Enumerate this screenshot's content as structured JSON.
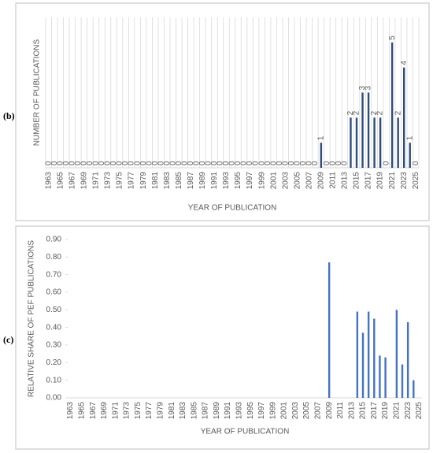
{
  "chart_data": [
    {
      "type": "bar",
      "label": "(b)",
      "y_label": "NUMBER OF PUBLICATIONS",
      "x_label": "YEAR OF PUBLICATION",
      "categories": [
        "1963",
        null,
        "1965",
        null,
        "1967",
        null,
        "1969",
        null,
        "1971",
        null,
        "1973",
        null,
        "1975",
        null,
        "1977",
        null,
        "1979",
        null,
        "1981",
        null,
        "1983",
        null,
        "1985",
        null,
        "1987",
        null,
        "1989",
        null,
        "1991",
        null,
        "1993",
        null,
        "1995",
        null,
        "1997",
        null,
        "1999",
        null,
        "2001",
        null,
        "2003",
        null,
        "2005",
        null,
        "2007",
        null,
        "2009",
        null,
        "2011",
        null,
        "2013",
        null,
        "2015",
        null,
        "2017",
        null,
        "2019",
        null,
        "2021",
        null,
        "2023",
        null,
        "2025"
      ],
      "values": [
        0,
        0,
        0,
        0,
        0,
        0,
        0,
        0,
        0,
        0,
        0,
        0,
        0,
        0,
        0,
        0,
        0,
        0,
        0,
        0,
        0,
        0,
        0,
        0,
        0,
        0,
        0,
        0,
        0,
        0,
        0,
        0,
        0,
        0,
        0,
        0,
        0,
        0,
        0,
        0,
        0,
        0,
        0,
        0,
        0,
        0,
        1,
        0,
        0,
        0,
        0,
        2,
        2,
        3,
        3,
        2,
        2,
        0,
        5,
        2,
        4,
        1,
        0
      ],
      "color": "#2f4b7c",
      "ylim": [
        0,
        6
      ],
      "grid": "x",
      "data_labels": true
    },
    {
      "type": "bar",
      "label": "(c)",
      "y_label": "RELATIVE SHARE OF PEF PUBLICATIONS",
      "x_label": "YEAR OF PUBLICATION",
      "categories": [
        "1963",
        null,
        "1965",
        null,
        "1967",
        null,
        "1969",
        null,
        "1971",
        null,
        "1973",
        null,
        "1975",
        null,
        "1977",
        null,
        "1979",
        null,
        "1981",
        null,
        "1983",
        null,
        "1985",
        null,
        "1987",
        null,
        "1989",
        null,
        "1991",
        null,
        "1993",
        null,
        "1995",
        null,
        "1997",
        null,
        "1999",
        null,
        "2001",
        null,
        "2003",
        null,
        "2005",
        null,
        "2007",
        null,
        "2009",
        null,
        "2011",
        null,
        "2013",
        null,
        "2015",
        null,
        "2017",
        null,
        "2019",
        null,
        "2021",
        null,
        "2023",
        null,
        "2025"
      ],
      "values": [
        0,
        0,
        0,
        0,
        0,
        0,
        0,
        0,
        0,
        0,
        0,
        0,
        0,
        0,
        0,
        0,
        0,
        0,
        0,
        0,
        0,
        0,
        0,
        0,
        0,
        0,
        0,
        0,
        0,
        0,
        0,
        0,
        0,
        0,
        0,
        0,
        0,
        0,
        0,
        0,
        0,
        0,
        0,
        0,
        0,
        0,
        0.77,
        0,
        0,
        0,
        0,
        0.49,
        0.37,
        0.49,
        0.45,
        0.24,
        0.23,
        0,
        0.5,
        0.19,
        0.43,
        0.1,
        0
      ],
      "color": "#4472c4",
      "ylim": [
        0,
        0.9
      ],
      "yticks": [
        {
          "value": 0,
          "label": "0.00"
        },
        {
          "value": 0.1,
          "label": "0.10"
        },
        {
          "value": 0.2,
          "label": "0.20"
        },
        {
          "value": 0.3,
          "label": "0.30"
        },
        {
          "value": 0.4,
          "label": "0.40"
        },
        {
          "value": 0.5,
          "label": "0.50"
        },
        {
          "value": 0.6,
          "label": "0.60"
        },
        {
          "value": 0.7,
          "label": "0.70"
        },
        {
          "value": 0.8,
          "label": "0.80"
        },
        {
          "value": 0.9,
          "label": "0.90"
        }
      ],
      "grid": false,
      "data_labels": false
    }
  ]
}
